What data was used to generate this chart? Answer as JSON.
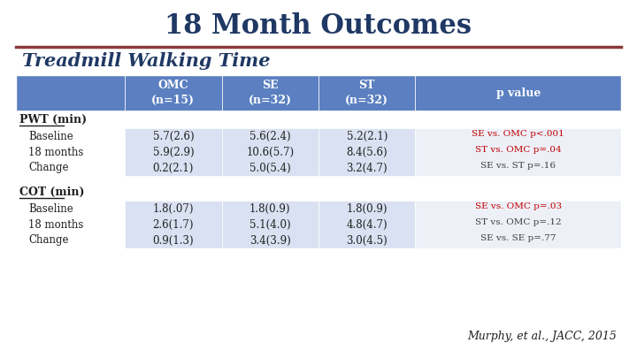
{
  "title": "18 Month Outcomes",
  "subtitle": "Treadmill Walking Time",
  "title_color": "#1F3864",
  "subtitle_color": "#1F3864",
  "divider_color": "#8B3A3A",
  "bg_color": "#FFFFFF",
  "header_bg": "#5B7FC0",
  "header_text_color": "#FFFFFF",
  "row_bg_light": "#D9E1F2",
  "row_bg_white": "#FFFFFF",
  "col_headers": [
    "",
    "OMC\n(n=15)",
    "SE\n(n=32)",
    "ST\n(n=32)",
    "p value"
  ],
  "sections": [
    {
      "label": "PWT (min)",
      "underline": true,
      "rows": [
        {
          "name": "Baseline",
          "omc": "5.7(2.6)",
          "se": "5.6(2.4)",
          "st": "5.2(2.1)",
          "pval": [
            {
              "text": "SE vs. OMC p<.001",
              "color": "#C00000"
            },
            {
              "text": "ST vs. OMC p=.04",
              "color": "#C00000"
            },
            {
              "text": "SE vs. ST p=.16",
              "color": "#404040"
            }
          ]
        },
        {
          "name": "18 months",
          "omc": "5.9(2.9)",
          "se": "10.6(5.7)",
          "st": "8.4(5.6)",
          "pval": null
        },
        {
          "name": "Change",
          "omc": "0.2(2.1)",
          "se": "5.0(5.4)",
          "st": "3.2(4.7)",
          "pval": null
        }
      ]
    },
    {
      "label": "COT (min)",
      "underline": true,
      "rows": [
        {
          "name": "Baseline",
          "omc": "1.8(.07)",
          "se": "1.8(0.9)",
          "st": "1.8(0.9)",
          "pval": [
            {
              "text": "SE vs. OMC p=.03",
              "color": "#C00000"
            },
            {
              "text": "ST vs. OMC p=.12",
              "color": "#404040"
            },
            {
              "text": "SE vs. SE p=.77",
              "color": "#404040"
            }
          ]
        },
        {
          "name": "18 months",
          "omc": "2.6(1.7)",
          "se": "5.1(4.0)",
          "st": "4.8(4.7)",
          "pval": null
        },
        {
          "name": "Change",
          "omc": "0.9(1.3)",
          "se": "3.4(3.9)",
          "st": "3.0(4.5)",
          "pval": null
        }
      ]
    }
  ],
  "citation": "Murphy, et al., JACC, 2015"
}
